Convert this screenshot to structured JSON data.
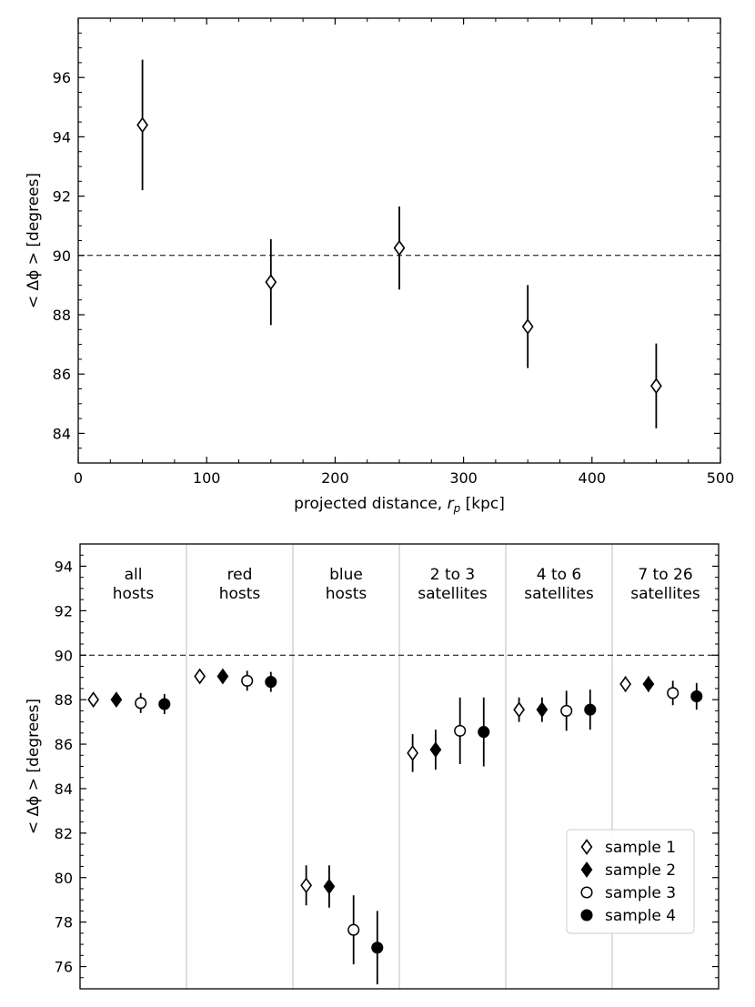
{
  "chart_data": [
    {
      "type": "scatter",
      "subtype": "errorbar",
      "xlabel": "projected distance, ",
      "xlabel_math": "r",
      "xlabel_sub": "p",
      "xlabel_unit": " [kpc]",
      "ylabel": "< Δϕ > [degrees]",
      "xlim": [
        0,
        500
      ],
      "ylim": [
        83,
        98
      ],
      "xticks": [
        0,
        100,
        200,
        300,
        400,
        500
      ],
      "yticks": [
        84,
        86,
        88,
        90,
        92,
        94,
        96
      ],
      "reference_line_y": 90,
      "marker": "open-diamond",
      "x": [
        50,
        150,
        250,
        350,
        450
      ],
      "y": [
        94.4,
        89.1,
        90.25,
        87.6,
        85.6
      ],
      "err": [
        2.2,
        1.45,
        1.4,
        1.4,
        1.43
      ]
    },
    {
      "type": "scatter",
      "subtype": "grouped-errorbar",
      "ylabel": "< Δϕ > [degrees]",
      "ylim": [
        75,
        95
      ],
      "yticks": [
        76,
        78,
        80,
        82,
        84,
        86,
        88,
        90,
        92,
        94
      ],
      "reference_line_y": 90,
      "groups": [
        [
          "all",
          "hosts"
        ],
        [
          "red",
          "hosts"
        ],
        [
          "blue",
          "hosts"
        ],
        [
          "2 to 3",
          "satellites"
        ],
        [
          "4 to 6",
          "satellites"
        ],
        [
          "7 to 26",
          "satellites"
        ]
      ],
      "legend_position": "lower-right",
      "series": [
        {
          "name": "sample 1",
          "marker": "open-diamond",
          "values": [
            88.0,
            89.05,
            79.65,
            85.6,
            87.55,
            88.7
          ],
          "err": [
            0.3,
            0.3,
            0.9,
            0.85,
            0.55,
            0.35
          ]
        },
        {
          "name": "sample 2",
          "marker": "filled-diamond",
          "values": [
            88.0,
            89.05,
            79.6,
            85.75,
            87.55,
            88.7
          ],
          "err": [
            0.3,
            0.3,
            0.95,
            0.9,
            0.55,
            0.35
          ]
        },
        {
          "name": "sample 3",
          "marker": "open-circle",
          "values": [
            87.85,
            88.85,
            77.65,
            86.6,
            87.5,
            88.3
          ],
          "err": [
            0.45,
            0.45,
            1.55,
            1.5,
            0.9,
            0.55
          ]
        },
        {
          "name": "sample 4",
          "marker": "filled-circle",
          "values": [
            87.8,
            88.8,
            76.85,
            86.55,
            87.55,
            88.15
          ],
          "err": [
            0.45,
            0.45,
            1.65,
            1.55,
            0.9,
            0.6
          ]
        }
      ]
    }
  ]
}
